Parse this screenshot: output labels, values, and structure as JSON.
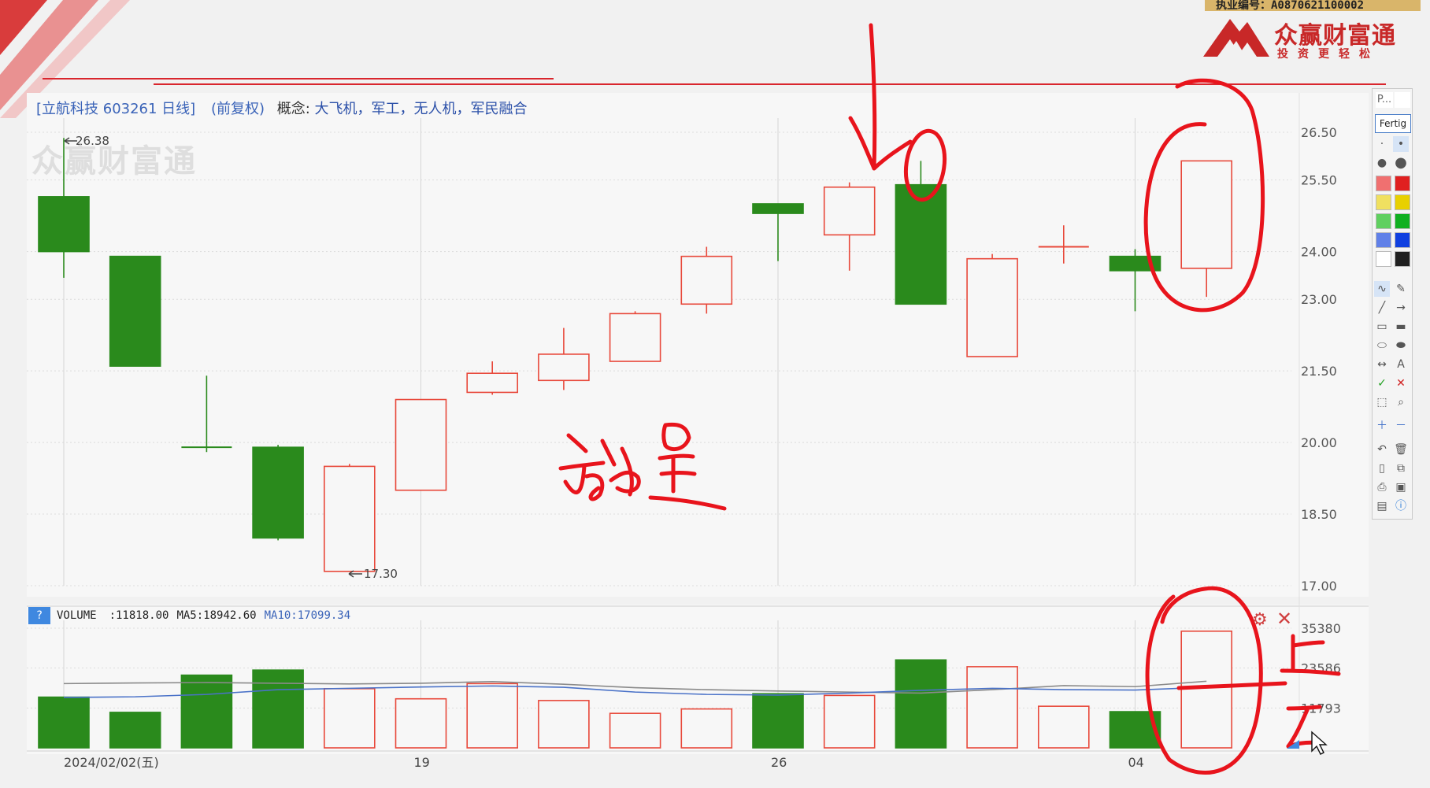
{
  "broker": {
    "license": "执业编号：A0870621100002",
    "brand_name": "众赢财富通",
    "brand_slogan": "投资更轻松",
    "watermark": "众赢财富通"
  },
  "header": {
    "stock": "[立航科技 603261 日线]",
    "adjust": "(前复权)",
    "concepts_label": "概念:",
    "concepts": "大飞机，军工，无人机，军民融合"
  },
  "chart_data": [
    {
      "type": "candlestick",
      "title": "",
      "ylim": [
        17.0,
        26.5
      ],
      "y_ticks": [
        "26.50",
        "25.50",
        "24.00",
        "23.00",
        "21.50",
        "20.00",
        "18.50",
        "17.00"
      ],
      "y_tick_values": [
        26.5,
        25.5,
        24.0,
        23.0,
        21.5,
        20.0,
        18.5,
        17.0
      ],
      "x_labels": [
        {
          "index": 0,
          "label": "2024/02/02(五)"
        },
        {
          "index": 5,
          "label": "19"
        },
        {
          "index": 10,
          "label": "26"
        },
        {
          "index": 15,
          "label": "04"
        }
      ],
      "grid": true,
      "up_color": "#e8483a",
      "down_color": "#2a8a1c",
      "candles": [
        {
          "open": 25.15,
          "close": 24.0,
          "high": 26.38,
          "low": 23.45
        },
        {
          "open": 23.9,
          "close": 21.6,
          "high": 23.9,
          "low": 21.6
        },
        {
          "open": 19.9,
          "close": 19.9,
          "high": 21.4,
          "low": 19.8
        },
        {
          "open": 19.9,
          "close": 18.0,
          "high": 19.95,
          "low": 17.95
        },
        {
          "open": 17.3,
          "close": 19.5,
          "high": 19.55,
          "low": 17.3
        },
        {
          "open": 19.0,
          "close": 20.9,
          "high": 20.9,
          "low": 19.0
        },
        {
          "open": 21.05,
          "close": 21.45,
          "high": 21.7,
          "low": 21.0
        },
        {
          "open": 21.3,
          "close": 21.85,
          "high": 22.4,
          "low": 21.1
        },
        {
          "open": 21.7,
          "close": 22.7,
          "high": 22.75,
          "low": 21.7
        },
        {
          "open": 22.9,
          "close": 23.9,
          "high": 24.1,
          "low": 22.7
        },
        {
          "open": 25.0,
          "close": 24.8,
          "high": 25.0,
          "low": 23.8
        },
        {
          "open": 24.35,
          "close": 25.35,
          "high": 25.45,
          "low": 23.6
        },
        {
          "open": 25.4,
          "close": 22.9,
          "high": 25.9,
          "low": 22.9
        },
        {
          "open": 21.8,
          "close": 23.85,
          "high": 23.95,
          "low": 21.8
        },
        {
          "open": 24.1,
          "close": 24.1,
          "high": 24.55,
          "low": 23.75
        },
        {
          "open": 23.9,
          "close": 23.6,
          "high": 24.05,
          "low": 22.75
        },
        {
          "open": 23.65,
          "close": 25.9,
          "high": 25.9,
          "low": 23.05
        }
      ],
      "annotations": {
        "high_label": "26.38",
        "low_label": "17.30"
      }
    },
    {
      "type": "bar",
      "title": "",
      "indicator": "VOLUME",
      "readout": {
        "volume": ":11818.00",
        "ma5": "MA5:18942.60",
        "ma10": "MA10:17099.34"
      },
      "ylim": [
        0,
        35380
      ],
      "y_ticks": [
        "35380",
        "23586",
        "11793"
      ],
      "y_tick_values": [
        35380,
        23586,
        11793
      ],
      "values": [
        15000,
        10500,
        21500,
        23000,
        17500,
        14500,
        19000,
        14000,
        10200,
        11500,
        16000,
        15500,
        26000,
        24000,
        12300,
        10700,
        34500
      ],
      "colors": [
        "down",
        "down",
        "down",
        "down",
        "up",
        "up",
        "up",
        "up",
        "up",
        "up",
        "down",
        "up",
        "down",
        "up",
        "up",
        "down",
        "up"
      ],
      "ma5": [
        19000,
        19200,
        19300,
        19100,
        18900,
        19100,
        19600,
        18800,
        17800,
        17200,
        16800,
        16500,
        16200,
        17200,
        18400,
        18100,
        19700
      ],
      "ma10": [
        14900,
        15100,
        15800,
        17200,
        17600,
        18000,
        18300,
        17900,
        16500,
        15800,
        15600,
        16200,
        17000,
        17600,
        17200,
        17100,
        17900
      ]
    }
  ],
  "toolbar": {
    "title": "P...",
    "done": "Fertig",
    "colors": [
      "#f07070",
      "#e02020",
      "#f0e060",
      "#e8d000",
      "#60d060",
      "#10b020",
      "#6080e8",
      "#1040e0",
      "#ffffff",
      "#202020"
    ]
  },
  "handwriting": {
    "volume_note": "放量",
    "up_label": "上",
    "down_label": "下",
    "ink_color": "#e8141c"
  }
}
